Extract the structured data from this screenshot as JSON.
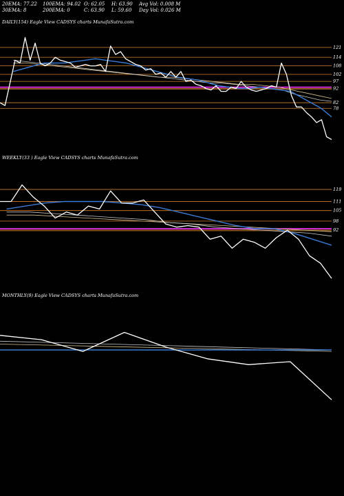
{
  "header": {
    "ema20": "20EMA: 77.22",
    "ema30": "30EMA: 8",
    "ema100": "100EMA: 94.02",
    "ema200": "200EMA: 0",
    "open": "O: 62.05",
    "close": "C: 63.90",
    "high": "H: 63.90",
    "low": "L: 59.60",
    "avg_vol": "Avg Vol: 0.008 M",
    "day_vol": "Day Vol: 0.026  M"
  },
  "panels": {
    "daily_title": "DAILY(154) Eagle   View  CADSYS charts MunafaSutra.com",
    "weekly_title": "WEEKLY(33                    ) Eagle   View  CADSYS charts MunafaSutra.com",
    "monthly_title": "MONTHLY(9) Eagle   View  CADSYS charts MunafaSutra.com"
  },
  "colors": {
    "background": "#000000",
    "price": "#ffffff",
    "level_line": "#b8702a",
    "magenta": "#ff33ff",
    "blue": "#3a7bd5",
    "ma_gray": "#c8c8c8",
    "ma_tan": "#d8c090"
  },
  "chart_data": [
    {
      "panel": "daily",
      "type": "line",
      "levels": [
        121,
        114,
        108,
        102,
        97,
        92,
        82,
        78
      ],
      "tick_labels": [
        "121",
        "114",
        "108",
        "102",
        "97",
        "92",
        "82",
        "78"
      ],
      "series": [
        {
          "role": "price",
          "values": [
            82,
            80,
            96,
            112,
            110,
            128,
            112,
            124,
            110,
            108,
            110,
            114,
            112,
            111,
            110,
            107,
            108,
            109,
            108,
            108,
            109,
            104,
            122,
            116,
            118,
            113,
            111,
            109,
            108,
            105,
            106,
            102,
            103,
            100,
            104,
            100,
            104,
            97,
            98,
            95,
            94,
            92,
            91,
            94,
            90,
            90,
            93,
            92,
            97,
            93,
            91,
            90,
            91,
            92,
            94,
            93,
            110,
            102,
            87,
            79,
            79,
            75,
            72,
            68,
            70,
            58,
            56
          ]
        },
        {
          "role": "ema-blue",
          "values": [
            104,
            106,
            108,
            110,
            110,
            110,
            111,
            112,
            113,
            112,
            111,
            110,
            108,
            106,
            104,
            102,
            100,
            99,
            98,
            96,
            94,
            93,
            92,
            92,
            93,
            92,
            91,
            90,
            86,
            82,
            78,
            72
          ]
        },
        {
          "role": "ema-gray",
          "values": [
            112,
            111,
            110,
            109,
            108,
            107,
            106,
            105,
            104,
            103,
            102,
            101,
            100,
            99,
            98,
            97,
            96,
            96,
            95,
            94,
            93,
            92,
            91,
            88,
            86,
            84,
            83
          ]
        },
        {
          "role": "ema-tan",
          "values": [
            110,
            110,
            109,
            108,
            107,
            106,
            105,
            104,
            103,
            102,
            101,
            100,
            100,
            99,
            98,
            97,
            96,
            95,
            95,
            94,
            93,
            91,
            89,
            87,
            85
          ]
        }
      ]
    },
    {
      "panel": "weekly",
      "type": "line",
      "levels": [
        119,
        111,
        105,
        98,
        92
      ],
      "tick_labels": [
        "119",
        "111",
        "105",
        "98",
        "92"
      ],
      "series": [
        {
          "role": "price",
          "values": [
            111,
            111,
            122,
            114,
            108,
            100,
            104,
            102,
            108,
            106,
            118,
            110,
            110,
            112,
            104,
            96,
            94,
            95,
            94,
            86,
            88,
            80,
            86,
            84,
            80,
            87,
            92,
            86,
            75,
            70,
            60
          ]
        },
        {
          "role": "ema-blue",
          "values": [
            106,
            108,
            110,
            111,
            111,
            111,
            110,
            109,
            107,
            104,
            101,
            98,
            95,
            93,
            93,
            90,
            86,
            82
          ]
        },
        {
          "role": "ema-gray",
          "values": [
            104,
            104,
            103,
            102,
            101,
            100,
            99,
            97,
            96,
            94,
            93,
            92,
            91,
            90,
            88
          ]
        },
        {
          "role": "ema-tan",
          "values": [
            102,
            102,
            101,
            100,
            99,
            98,
            97,
            96,
            95,
            94,
            93,
            92,
            91
          ]
        }
      ]
    },
    {
      "panel": "monthly",
      "type": "line",
      "levels": [],
      "tick_labels": [],
      "series": [
        {
          "role": "price",
          "values": [
            88,
            85,
            77,
            90,
            80,
            72,
            68,
            70,
            44
          ]
        },
        {
          "role": "ema-blue",
          "values": [
            78,
            78,
            78,
            78
          ]
        },
        {
          "role": "ema-gray",
          "values": [
            84,
            83,
            82,
            81,
            80,
            79,
            78
          ]
        },
        {
          "role": "ema-tan",
          "values": [
            82,
            81,
            80,
            79,
            78,
            77
          ]
        }
      ]
    }
  ]
}
